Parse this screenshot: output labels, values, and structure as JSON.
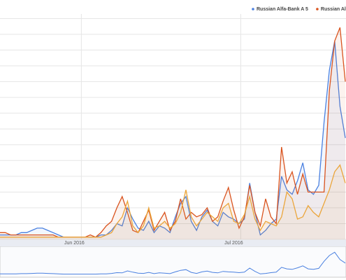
{
  "chart_data": {
    "type": "line",
    "categories": [
      null,
      null,
      null,
      null,
      null,
      null,
      null,
      null,
      null,
      null,
      null,
      null,
      null,
      null,
      "Jun 2016",
      null,
      null,
      null,
      null,
      null,
      null,
      null,
      null,
      null,
      null,
      null,
      null,
      null,
      null,
      null,
      null,
      null,
      null,
      null,
      null,
      null,
      null,
      null,
      null,
      null,
      null,
      null,
      null,
      null,
      "Jul 2016",
      null,
      null,
      null,
      null,
      null,
      null,
      null,
      null,
      null,
      null,
      null,
      null,
      null,
      null,
      null,
      null,
      null,
      null,
      null,
      null,
      null
    ],
    "series": [
      {
        "name": "Russian Alfa-Bank A 5",
        "color": "#4a80e0",
        "values": [
          2,
          2,
          2,
          2,
          3,
          3,
          4,
          5,
          5,
          4,
          3,
          2,
          1,
          1,
          1,
          1,
          1,
          1,
          1,
          2,
          2,
          4,
          7,
          6,
          14,
          9,
          5,
          4,
          8,
          3,
          6,
          5,
          3,
          10,
          16,
          19,
          8,
          4,
          10,
          13,
          8,
          6,
          12,
          10,
          9,
          7,
          9,
          25,
          12,
          2,
          4,
          7,
          9,
          28,
          22,
          20,
          26,
          34,
          22,
          20,
          24,
          52,
          75,
          88,
          59,
          45
        ]
      },
      {
        "name": "Russian Alfa",
        "color": "#d9531e",
        "values": [
          3,
          3,
          2,
          2,
          2,
          2,
          2,
          2,
          2,
          2,
          2,
          1,
          1,
          1,
          1,
          1,
          1,
          2,
          1,
          3,
          6,
          8,
          14,
          19,
          12,
          4,
          3,
          8,
          13,
          4,
          8,
          12,
          4,
          8,
          18,
          9,
          12,
          10,
          11,
          14,
          8,
          10,
          17,
          23,
          13,
          5,
          10,
          24,
          12,
          6,
          18,
          10,
          7,
          41,
          25,
          30,
          20,
          29,
          21,
          21,
          21,
          21,
          66,
          88,
          94,
          70
        ]
      },
      {
        "color": "#eba53a",
        "values": [
          1,
          1,
          1,
          1,
          1,
          1,
          1,
          1,
          1,
          1,
          1,
          1,
          1,
          1,
          1,
          1,
          1,
          1,
          1,
          1,
          2,
          3,
          7,
          10,
          17,
          6,
          3,
          6,
          14,
          5,
          6,
          8,
          5,
          7,
          12,
          22,
          10,
          6,
          9,
          12,
          10,
          8,
          14,
          16,
          8,
          7,
          11,
          19,
          9,
          4,
          8,
          7,
          6,
          10,
          21,
          18,
          9,
          10,
          15,
          12,
          10,
          16,
          22,
          30,
          33,
          25
        ]
      }
    ],
    "ylim": [
      0,
      100
    ],
    "yticks": [
      0,
      7,
      14,
      21,
      28,
      35,
      42,
      49,
      56,
      63,
      70,
      77,
      84,
      91,
      98
    ],
    "grid": true
  }
}
